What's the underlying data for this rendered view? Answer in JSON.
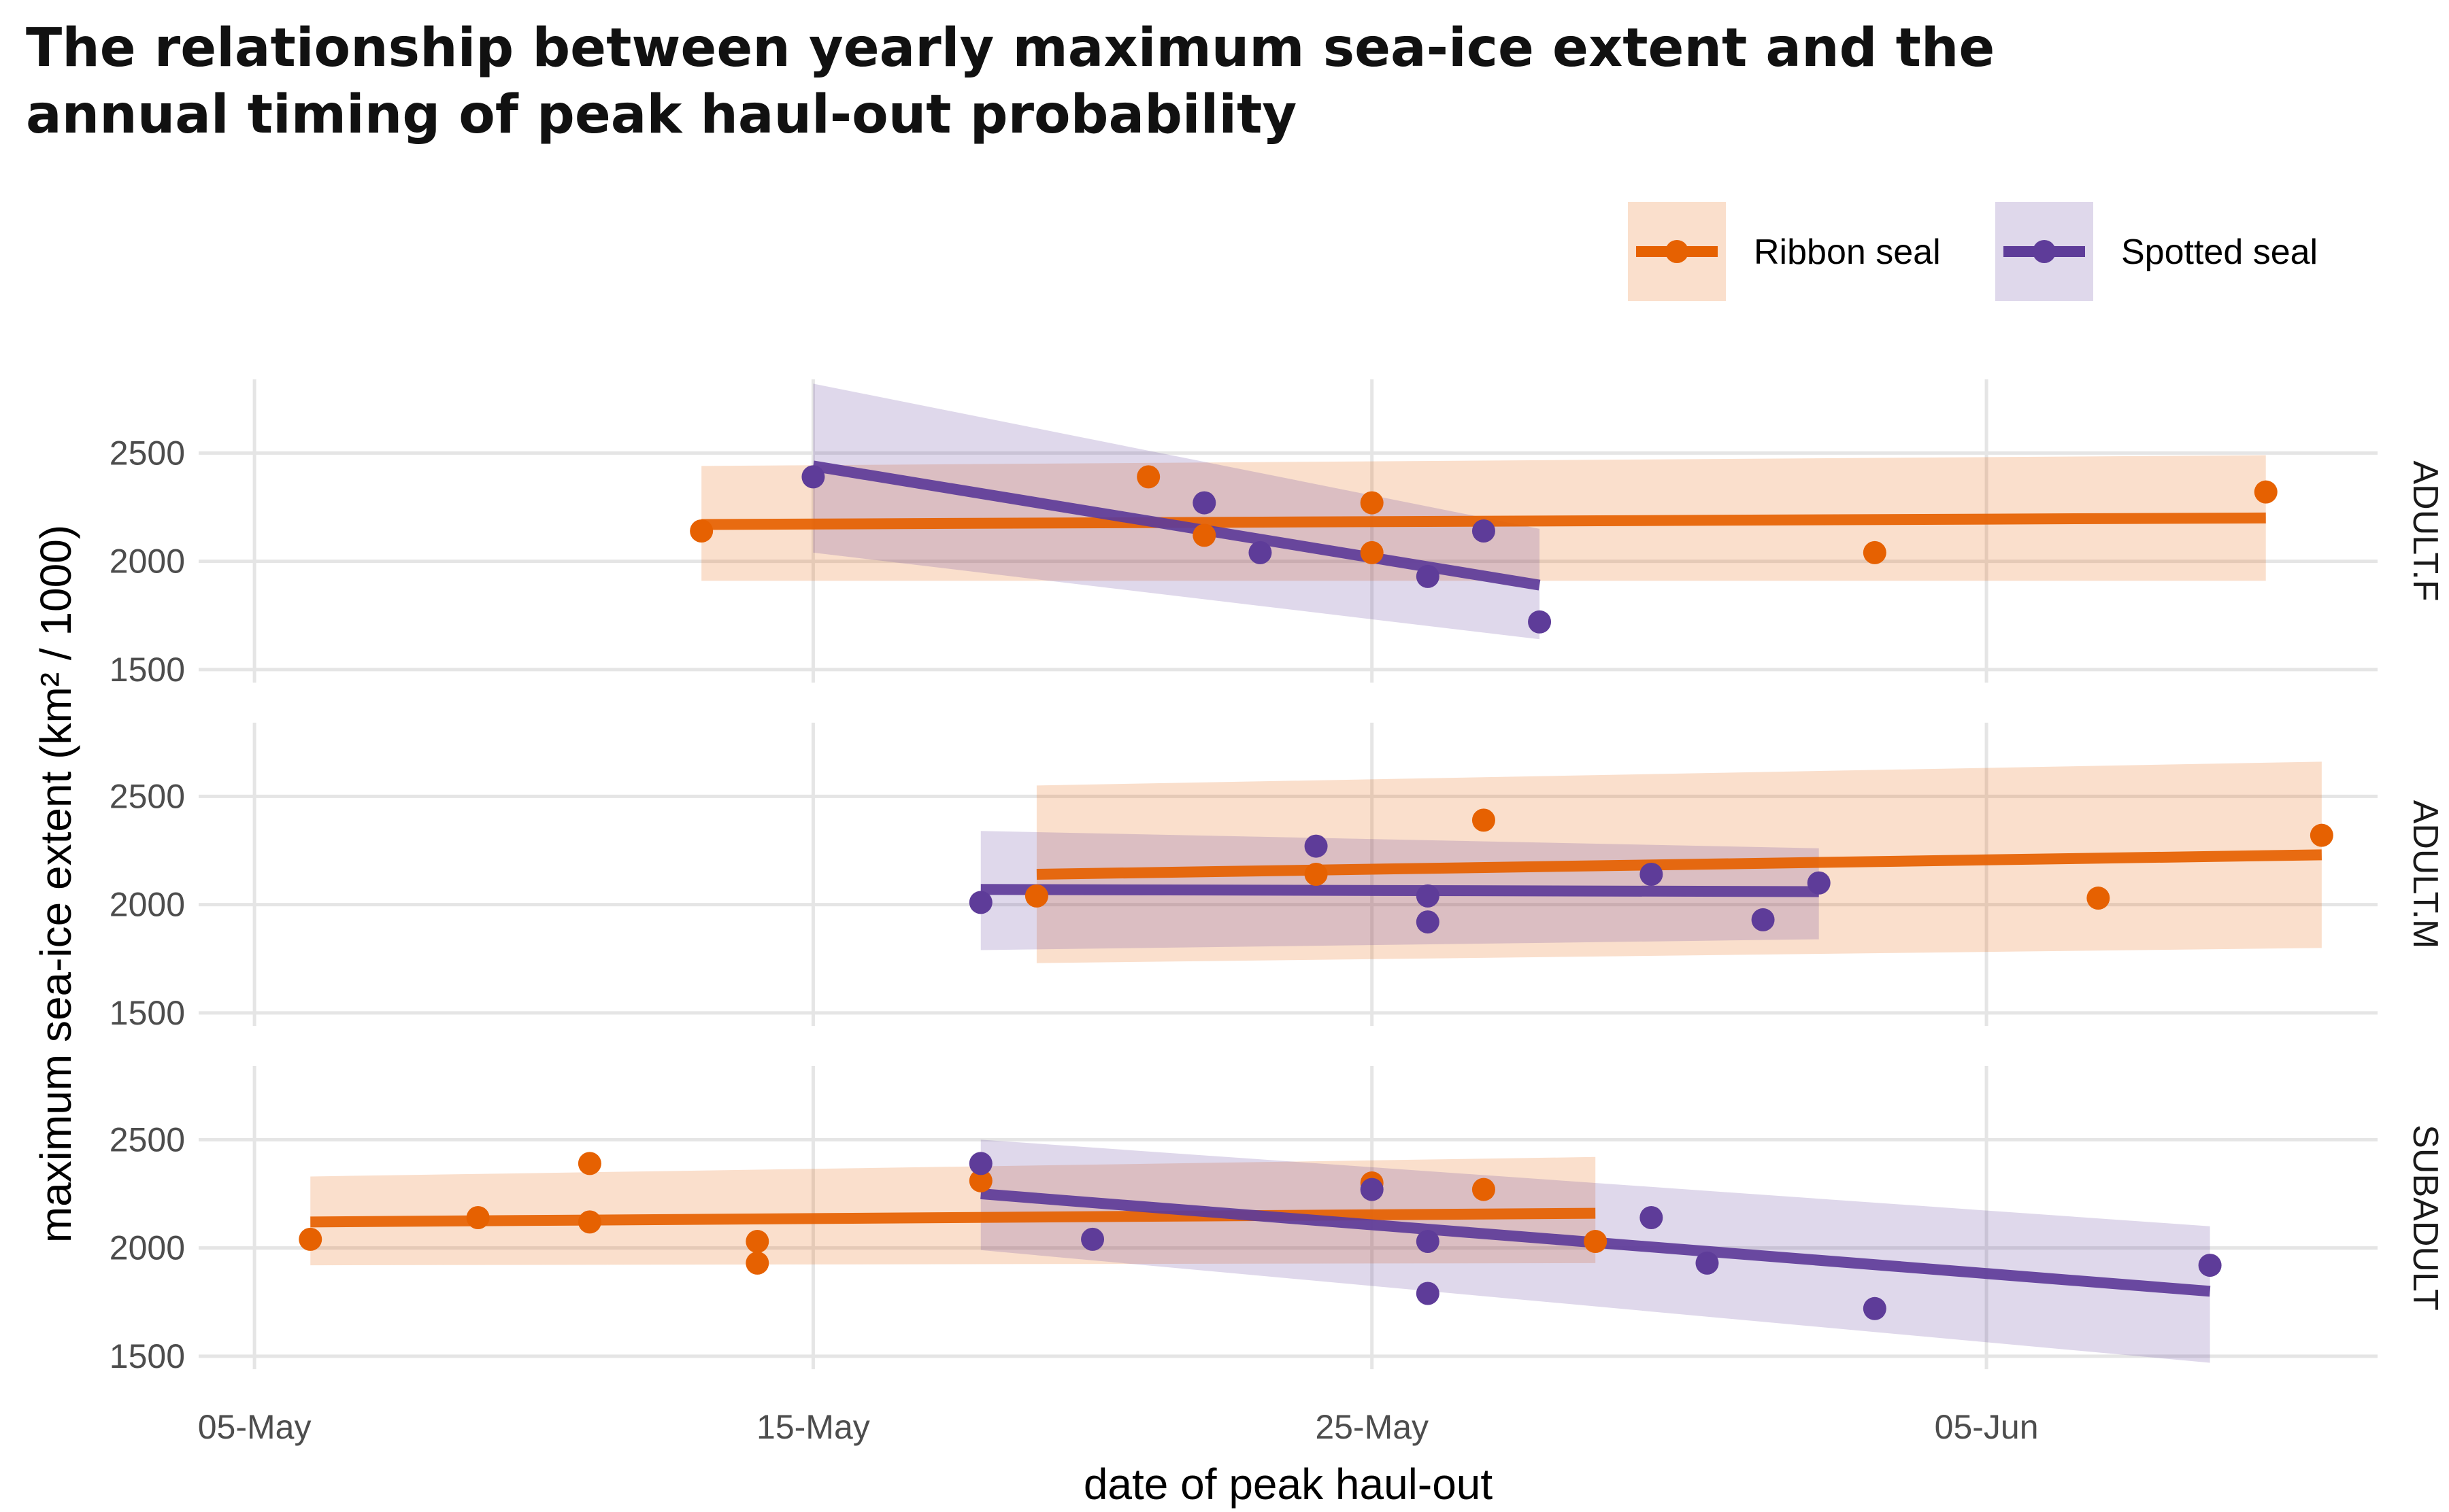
{
  "title": "The relationship between yearly maximum sea-ice extent and the annual timing of peak haul-out probability",
  "chart_data": {
    "type": "scatter",
    "xlabel": "date of peak haul-out",
    "ylabel": "maximum sea-ice extent (km² / 1000)",
    "x_ticks": [
      "05-May",
      "15-May",
      "25-May",
      "05-Jun"
    ],
    "x_range": [
      "2019-05-04",
      "2019-06-12"
    ],
    "ylim": [
      1440,
      2840
    ],
    "y_ticks": [
      1500,
      2000,
      2500
    ],
    "grid": true,
    "legend_position": "top-right",
    "colors": {
      "Ribbon seal": "#e66101",
      "Spotted seal": "#5e3c99"
    },
    "legend": [
      "Ribbon seal",
      "Spotted seal"
    ],
    "panels": [
      {
        "label": "ADULT.F",
        "series": [
          {
            "name": "Ribbon seal",
            "points": [
              [
                "2019-05-13",
                2140
              ],
              [
                "2019-05-21",
                2390
              ],
              [
                "2019-05-22",
                2120
              ],
              [
                "2019-05-25",
                2270
              ],
              [
                "2019-05-25",
                2040
              ],
              [
                "2019-06-03",
                2040
              ],
              [
                "2019-06-10",
                2320
              ]
            ],
            "fit": {
              "x": [
                "2019-05-13",
                "2019-06-10"
              ],
              "y": [
                2170,
                2200
              ]
            },
            "ci_lower": [
              1910,
              1910
            ],
            "ci_upper": [
              2440,
              2490
            ]
          },
          {
            "name": "Spotted seal",
            "points": [
              [
                "2019-05-15",
                2390
              ],
              [
                "2019-05-22",
                2270
              ],
              [
                "2019-05-23",
                2040
              ],
              [
                "2019-05-26",
                1930
              ],
              [
                "2019-05-27",
                2140
              ],
              [
                "2019-05-28",
                1720
              ]
            ],
            "fit": {
              "x": [
                "2019-05-15",
                "2019-05-28"
              ],
              "y": [
                2440,
                1890
              ]
            },
            "ci_lower": [
              2040,
              1640
            ],
            "ci_upper": [
              2820,
              2150
            ]
          }
        ]
      },
      {
        "label": "ADULT.M",
        "series": [
          {
            "name": "Ribbon seal",
            "points": [
              [
                "2019-05-19",
                2040
              ],
              [
                "2019-05-24",
                2140
              ],
              [
                "2019-05-27",
                2390
              ],
              [
                "2019-06-07",
                2030
              ],
              [
                "2019-06-11",
                2320
              ]
            ],
            "fit": {
              "x": [
                "2019-05-19",
                "2019-06-11"
              ],
              "y": [
                2140,
                2230
              ]
            },
            "ci_lower": [
              1730,
              1800
            ],
            "ci_upper": [
              2550,
              2660
            ]
          },
          {
            "name": "Spotted seal",
            "points": [
              [
                "2019-05-18",
                2010
              ],
              [
                "2019-05-24",
                2270
              ],
              [
                "2019-05-26",
                2040
              ],
              [
                "2019-05-26",
                1920
              ],
              [
                "2019-05-30",
                2140
              ],
              [
                "2019-06-01",
                1930
              ],
              [
                "2019-06-02",
                2100
              ]
            ],
            "fit": {
              "x": [
                "2019-05-18",
                "2019-06-02"
              ],
              "y": [
                2070,
                2060
              ]
            },
            "ci_lower": [
              1790,
              1840
            ],
            "ci_upper": [
              2340,
              2260
            ]
          }
        ]
      },
      {
        "label": "SUBADULT",
        "series": [
          {
            "name": "Ribbon seal",
            "points": [
              [
                "2019-05-06",
                2040
              ],
              [
                "2019-05-09",
                2140
              ],
              [
                "2019-05-11",
                2390
              ],
              [
                "2019-05-11",
                2120
              ],
              [
                "2019-05-14",
                2030
              ],
              [
                "2019-05-14",
                1930
              ],
              [
                "2019-05-18",
                2310
              ],
              [
                "2019-05-25",
                2300
              ],
              [
                "2019-05-27",
                2270
              ],
              [
                "2019-05-29",
                2030
              ]
            ],
            "fit": {
              "x": [
                "2019-05-06",
                "2019-05-29"
              ],
              "y": [
                2120,
                2160
              ]
            },
            "ci_lower": [
              1920,
              1930
            ],
            "ci_upper": [
              2330,
              2420
            ]
          },
          {
            "name": "Spotted seal",
            "points": [
              [
                "2019-05-18",
                2390
              ],
              [
                "2019-05-20",
                2040
              ],
              [
                "2019-05-25",
                2270
              ],
              [
                "2019-05-26",
                2030
              ],
              [
                "2019-05-26",
                1790
              ],
              [
                "2019-05-30",
                2140
              ],
              [
                "2019-05-31",
                1930
              ],
              [
                "2019-06-03",
                1720
              ],
              [
                "2019-06-09",
                1920
              ]
            ],
            "fit": {
              "x": [
                "2019-05-18",
                "2019-06-09"
              ],
              "y": [
                2250,
                1800
              ]
            },
            "ci_lower": [
              1990,
              1470
            ],
            "ci_upper": [
              2500,
              2100
            ]
          }
        ]
      }
    ]
  }
}
